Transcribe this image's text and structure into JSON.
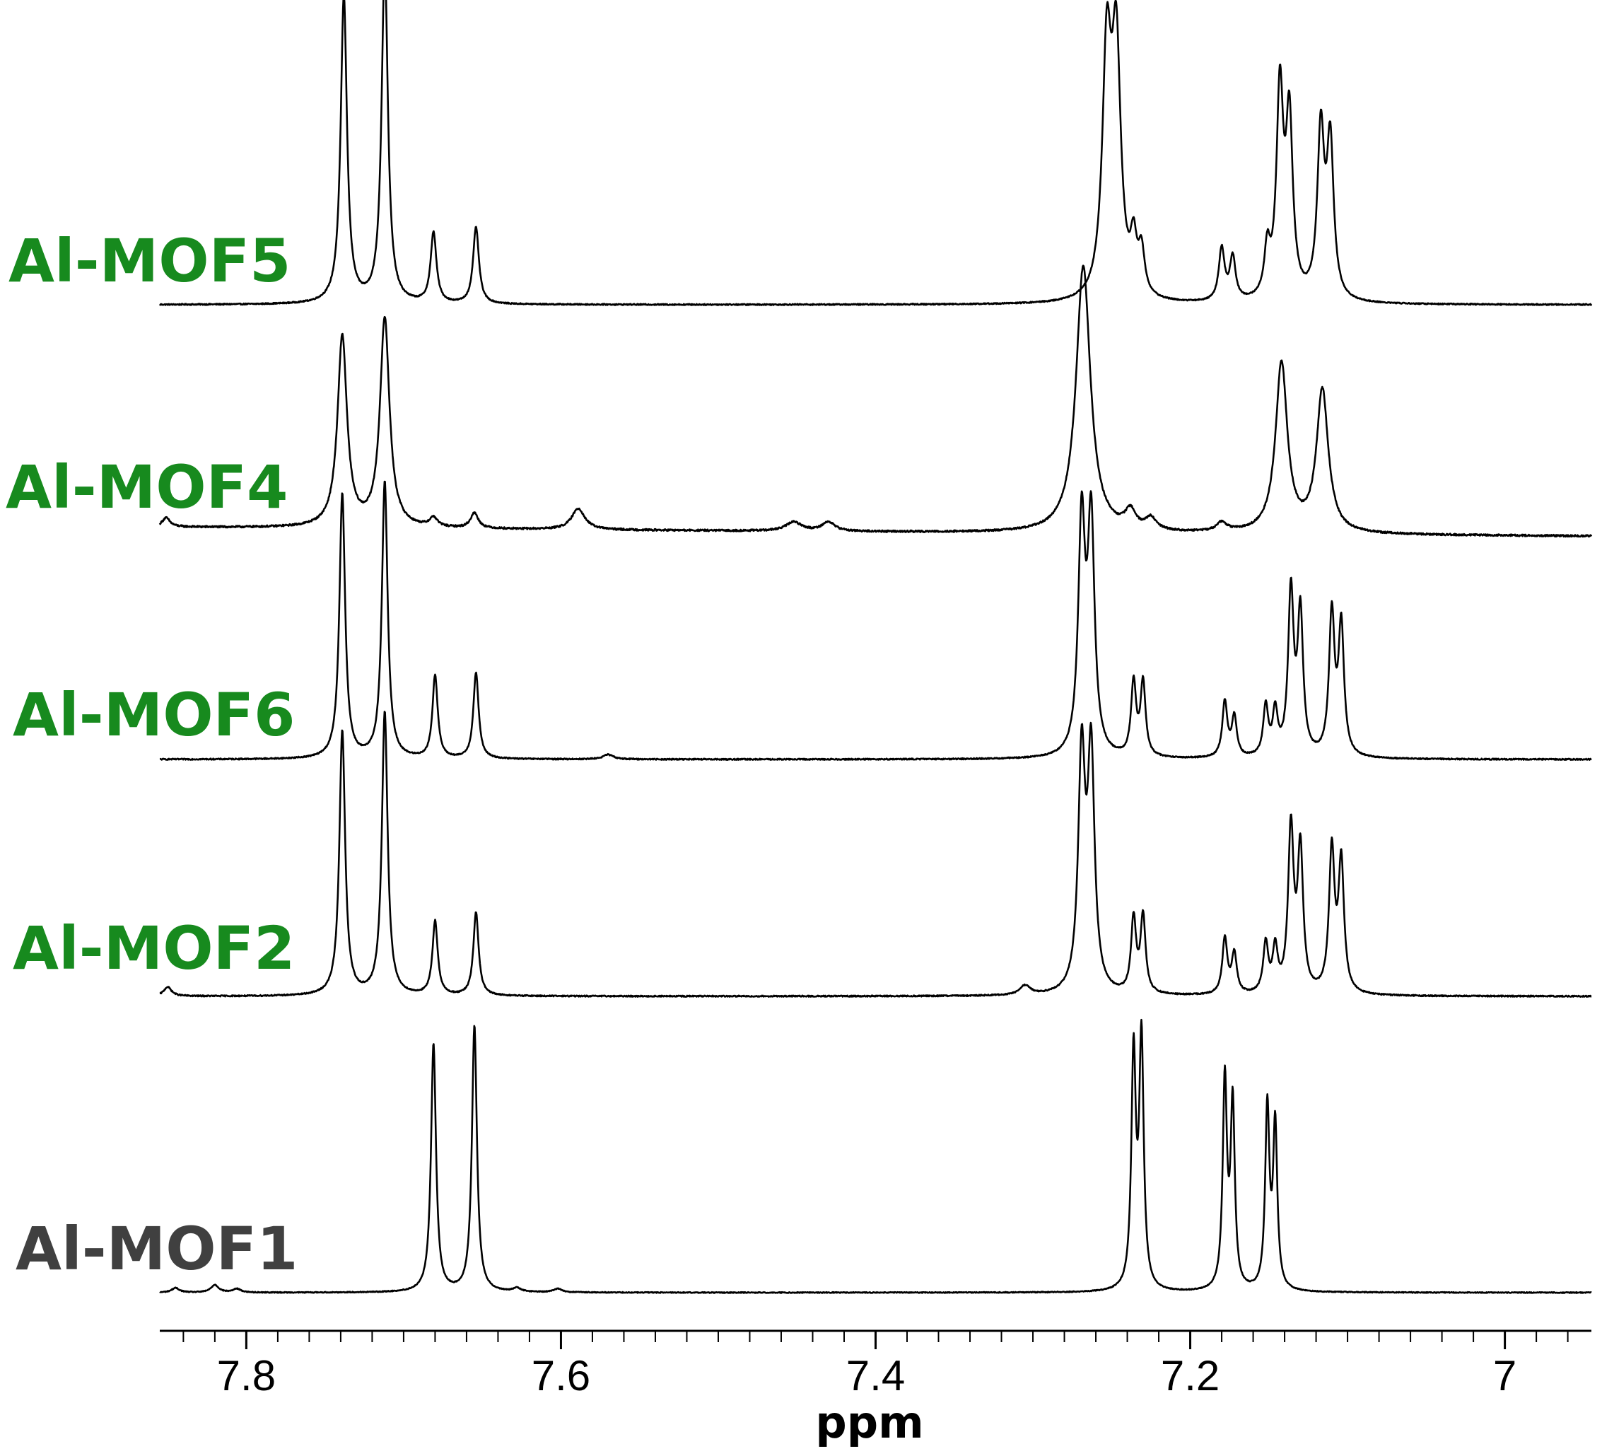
{
  "chart_data": {
    "type": "line",
    "subtype": "stacked NMR spectra",
    "title": "",
    "xlabel": "ppm",
    "ylabel": "",
    "x_reversed": true,
    "xlim": [
      7.855,
      6.945
    ],
    "x_ticks": [
      {
        "value": 7.8,
        "label": "7.8"
      },
      {
        "value": 7.6,
        "label": "7.6"
      },
      {
        "value": 7.4,
        "label": "7.4"
      },
      {
        "value": 7.2,
        "label": "7.2"
      },
      {
        "value": 7.0,
        "label": "7"
      }
    ],
    "grid": false,
    "legend": "none",
    "series": [
      {
        "name": "Al-MOF5",
        "color": "#178A1E",
        "noise": 0.004,
        "baseline": [
          [
            7.855,
            0.0
          ],
          [
            6.945,
            0.0
          ]
        ],
        "peaks": [
          {
            "ppm": 7.738,
            "height": 1.0,
            "width": 0.0024
          },
          {
            "ppm": 7.712,
            "height": 1.11,
            "width": 0.0024
          },
          {
            "ppm": 7.681,
            "height": 0.23,
            "width": 0.0022
          },
          {
            "ppm": 7.654,
            "height": 0.25,
            "width": 0.0022
          },
          {
            "ppm": 7.253,
            "height": 0.78,
            "width": 0.0034
          },
          {
            "ppm": 7.247,
            "height": 0.78,
            "width": 0.0034
          },
          {
            "ppm": 7.236,
            "height": 0.16,
            "width": 0.0024
          },
          {
            "ppm": 7.231,
            "height": 0.14,
            "width": 0.0024
          },
          {
            "ppm": 7.18,
            "height": 0.17,
            "width": 0.0022
          },
          {
            "ppm": 7.173,
            "height": 0.14,
            "width": 0.0022
          },
          {
            "ppm": 7.151,
            "height": 0.15,
            "width": 0.0022
          },
          {
            "ppm": 7.143,
            "height": 0.67,
            "width": 0.0026
          },
          {
            "ppm": 7.137,
            "height": 0.57,
            "width": 0.0026
          },
          {
            "ppm": 7.117,
            "height": 0.54,
            "width": 0.0026
          },
          {
            "ppm": 7.111,
            "height": 0.5,
            "width": 0.0026
          }
        ]
      },
      {
        "name": "Al-MOF4",
        "color": "#178A1E",
        "noise": 0.006,
        "baseline": [
          [
            7.855,
            0.02
          ],
          [
            7.3,
            0.0
          ],
          [
            6.945,
            -0.01
          ]
        ],
        "peaks": [
          {
            "ppm": 7.851,
            "height": 0.03,
            "width": 0.003
          },
          {
            "ppm": 7.739,
            "height": 0.63,
            "width": 0.0036
          },
          {
            "ppm": 7.712,
            "height": 0.69,
            "width": 0.0036
          },
          {
            "ppm": 7.681,
            "height": 0.03,
            "width": 0.003
          },
          {
            "ppm": 7.655,
            "height": 0.05,
            "width": 0.003
          },
          {
            "ppm": 7.589,
            "height": 0.07,
            "width": 0.005
          },
          {
            "ppm": 7.452,
            "height": 0.03,
            "width": 0.006
          },
          {
            "ppm": 7.43,
            "height": 0.03,
            "width": 0.005
          },
          {
            "ppm": 7.268,
            "height": 0.88,
            "width": 0.0055
          },
          {
            "ppm": 7.238,
            "height": 0.06,
            "width": 0.004
          },
          {
            "ppm": 7.225,
            "height": 0.04,
            "width": 0.004
          },
          {
            "ppm": 7.18,
            "height": 0.03,
            "width": 0.004
          },
          {
            "ppm": 7.142,
            "height": 0.56,
            "width": 0.0045
          },
          {
            "ppm": 7.116,
            "height": 0.47,
            "width": 0.0045
          }
        ]
      },
      {
        "name": "Al-MOF6",
        "color": "#178A1E",
        "noise": 0.004,
        "baseline": [
          [
            7.855,
            0.0
          ],
          [
            6.945,
            0.0
          ]
        ],
        "peaks": [
          {
            "ppm": 7.739,
            "height": 0.86,
            "width": 0.0022
          },
          {
            "ppm": 7.712,
            "height": 0.9,
            "width": 0.0022
          },
          {
            "ppm": 7.68,
            "height": 0.27,
            "width": 0.002
          },
          {
            "ppm": 7.654,
            "height": 0.28,
            "width": 0.002
          },
          {
            "ppm": 7.57,
            "height": 0.015,
            "width": 0.004
          },
          {
            "ppm": 7.269,
            "height": 0.75,
            "width": 0.0026
          },
          {
            "ppm": 7.263,
            "height": 0.75,
            "width": 0.0026
          },
          {
            "ppm": 7.236,
            "height": 0.24,
            "width": 0.0019
          },
          {
            "ppm": 7.23,
            "height": 0.24,
            "width": 0.0019
          },
          {
            "ppm": 7.178,
            "height": 0.18,
            "width": 0.0019
          },
          {
            "ppm": 7.172,
            "height": 0.13,
            "width": 0.0019
          },
          {
            "ppm": 7.152,
            "height": 0.16,
            "width": 0.0019
          },
          {
            "ppm": 7.146,
            "height": 0.14,
            "width": 0.0019
          },
          {
            "ppm": 7.136,
            "height": 0.53,
            "width": 0.0021
          },
          {
            "ppm": 7.13,
            "height": 0.46,
            "width": 0.0021
          },
          {
            "ppm": 7.11,
            "height": 0.46,
            "width": 0.0021
          },
          {
            "ppm": 7.104,
            "height": 0.42,
            "width": 0.0021
          }
        ]
      },
      {
        "name": "Al-MOF2",
        "color": "#178A1E",
        "noise": 0.004,
        "baseline": [
          [
            7.855,
            0.0
          ],
          [
            6.945,
            0.0
          ]
        ],
        "peaks": [
          {
            "ppm": 7.85,
            "height": 0.03,
            "width": 0.003
          },
          {
            "ppm": 7.739,
            "height": 0.86,
            "width": 0.0022
          },
          {
            "ppm": 7.712,
            "height": 0.92,
            "width": 0.0022
          },
          {
            "ppm": 7.68,
            "height": 0.24,
            "width": 0.002
          },
          {
            "ppm": 7.654,
            "height": 0.27,
            "width": 0.002
          },
          {
            "ppm": 7.305,
            "height": 0.03,
            "width": 0.004
          },
          {
            "ppm": 7.269,
            "height": 0.76,
            "width": 0.0026
          },
          {
            "ppm": 7.263,
            "height": 0.76,
            "width": 0.0026
          },
          {
            "ppm": 7.236,
            "height": 0.24,
            "width": 0.0019
          },
          {
            "ppm": 7.23,
            "height": 0.25,
            "width": 0.0019
          },
          {
            "ppm": 7.178,
            "height": 0.18,
            "width": 0.0019
          },
          {
            "ppm": 7.172,
            "height": 0.13,
            "width": 0.0019
          },
          {
            "ppm": 7.152,
            "height": 0.16,
            "width": 0.0019
          },
          {
            "ppm": 7.146,
            "height": 0.14,
            "width": 0.0019
          },
          {
            "ppm": 7.136,
            "height": 0.53,
            "width": 0.0021
          },
          {
            "ppm": 7.13,
            "height": 0.46,
            "width": 0.0021
          },
          {
            "ppm": 7.11,
            "height": 0.46,
            "width": 0.0021
          },
          {
            "ppm": 7.104,
            "height": 0.42,
            "width": 0.0021
          }
        ]
      },
      {
        "name": "Al-MOF1",
        "color": "#404040",
        "noise": 0.003,
        "baseline": [
          [
            7.855,
            0.0
          ],
          [
            6.945,
            0.0
          ]
        ],
        "peaks": [
          {
            "ppm": 7.845,
            "height": 0.015,
            "width": 0.003
          },
          {
            "ppm": 7.82,
            "height": 0.025,
            "width": 0.003
          },
          {
            "ppm": 7.806,
            "height": 0.012,
            "width": 0.003
          },
          {
            "ppm": 7.681,
            "height": 0.82,
            "width": 0.0019
          },
          {
            "ppm": 7.655,
            "height": 0.88,
            "width": 0.0019
          },
          {
            "ppm": 7.628,
            "height": 0.012,
            "width": 0.003
          },
          {
            "ppm": 7.602,
            "height": 0.012,
            "width": 0.003
          },
          {
            "ppm": 7.236,
            "height": 0.77,
            "width": 0.0017
          },
          {
            "ppm": 7.231,
            "height": 0.82,
            "width": 0.0017
          },
          {
            "ppm": 7.178,
            "height": 0.69,
            "width": 0.0016
          },
          {
            "ppm": 7.173,
            "height": 0.61,
            "width": 0.0016
          },
          {
            "ppm": 7.151,
            "height": 0.6,
            "width": 0.0016
          },
          {
            "ppm": 7.146,
            "height": 0.54,
            "width": 0.0016
          }
        ]
      }
    ]
  }
}
